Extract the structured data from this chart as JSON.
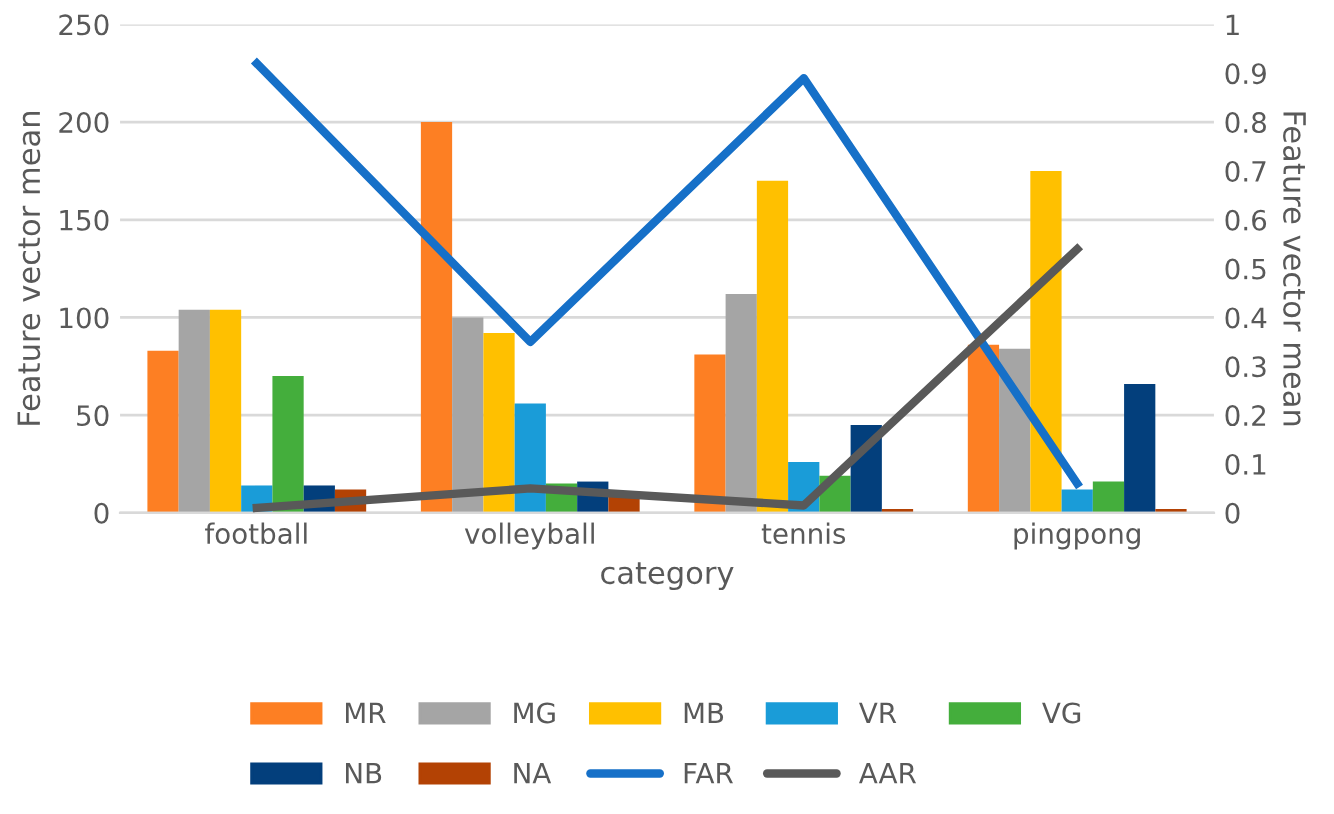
{
  "chart_data": {
    "type": "bar",
    "xlabel": "category",
    "ylabel": "Feature vector mean",
    "y2label": "Feature vector mean",
    "categories": [
      "football",
      "volleyball",
      "tennis",
      "pingpong"
    ],
    "series": [
      {
        "name": "MR",
        "color": "#fd7f23",
        "values": [
          83,
          200,
          81,
          86
        ]
      },
      {
        "name": "MG",
        "color": "#a5a5a5",
        "values": [
          104,
          100,
          112,
          84
        ]
      },
      {
        "name": "MB",
        "color": "#ffc000",
        "values": [
          104,
          92,
          170,
          175
        ]
      },
      {
        "name": "VR",
        "color": "#1a9cd8",
        "values": [
          14,
          56,
          26,
          12
        ]
      },
      {
        "name": "VG",
        "color": "#44ae3c",
        "values": [
          70,
          15,
          19,
          16
        ]
      },
      {
        "name": "NB",
        "color": "#033f7c",
        "values": [
          14,
          16,
          45,
          66
        ]
      },
      {
        "name": "NA",
        "color": "#b34204",
        "values": [
          12,
          10,
          2,
          2
        ]
      },
      {
        "name": "FAR",
        "type": "line",
        "axis": "y2",
        "color": "#1670c8",
        "values": [
          0.92,
          0.35,
          0.89,
          0.06
        ]
      },
      {
        "name": "AAR",
        "type": "line",
        "axis": "y2",
        "color": "#595959",
        "values": [
          0.01,
          0.05,
          0.015,
          0.54
        ]
      }
    ],
    "ylim": [
      0,
      250
    ],
    "yticks": [
      0,
      50,
      100,
      150,
      200,
      250
    ],
    "y2lim": [
      0,
      1
    ],
    "y2ticks": [
      0,
      0.1,
      0.2,
      0.3,
      0.4,
      0.5,
      0.6,
      0.7,
      0.8,
      0.9,
      1
    ],
    "grid": "y",
    "legend": "bottom"
  }
}
